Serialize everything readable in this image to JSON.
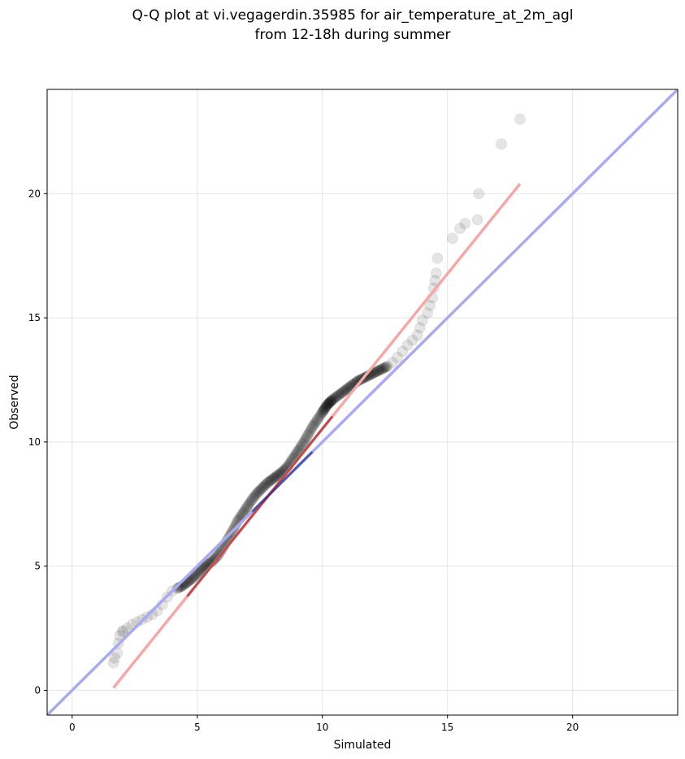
{
  "chart_data": {
    "type": "scatter",
    "title_line1": "Q-Q plot at vi.vegagerdin.35985 for air_temperature_at_2m_agl",
    "title_line2": "from 12-18h during summer",
    "xlabel": "Simulated",
    "ylabel": "Observed",
    "xlim": [
      -1,
      24.2
    ],
    "ylim": [
      -1,
      24.2
    ],
    "xticks": [
      0,
      5,
      10,
      15,
      20
    ],
    "yticks": [
      0,
      5,
      10,
      15,
      20
    ],
    "grid": true,
    "colors": {
      "points": "#000000",
      "identity_line": "#aaaaee",
      "fit_line": "#f5a8a8",
      "inner_fit": "#8b0000",
      "inner_identity": "#1a1a8c"
    },
    "identity_line": {
      "x": [
        -1,
        24.2
      ],
      "y": [
        -1,
        24.2
      ]
    },
    "fit_line": {
      "x": [
        1.65,
        17.9
      ],
      "y": [
        0.1,
        20.4
      ]
    },
    "points": {
      "x": [
        1.65,
        1.7,
        1.8,
        1.85,
        1.9,
        2.0,
        2.05,
        2.2,
        2.4,
        2.6,
        2.8,
        3.0,
        3.2,
        3.4,
        3.6,
        3.8,
        4.0,
        4.2,
        4.4,
        4.6,
        4.8,
        5.0,
        5.2,
        5.4,
        5.6,
        5.8,
        6.0,
        6.2,
        6.4,
        6.6,
        6.8,
        7.0,
        7.2,
        7.4,
        7.6,
        7.8,
        8.0,
        8.2,
        8.4,
        8.6,
        8.8,
        9.0,
        9.2,
        9.4,
        9.6,
        9.8,
        10.0,
        10.1,
        10.2,
        10.3,
        10.4,
        10.6,
        10.8,
        11.0,
        11.2,
        11.4,
        11.6,
        11.8,
        12.0,
        12.2,
        12.4,
        12.6,
        12.8,
        13.0,
        13.2,
        13.4,
        13.6,
        13.8,
        13.9,
        14.0,
        14.2,
        14.3,
        14.4,
        14.45,
        14.5,
        14.55,
        14.6,
        15.2,
        15.5,
        15.7,
        16.2,
        16.25,
        17.15,
        17.9
      ],
      "y": [
        1.1,
        1.3,
        1.5,
        1.9,
        2.2,
        2.35,
        2.4,
        2.5,
        2.65,
        2.75,
        2.85,
        2.95,
        3.05,
        3.2,
        3.45,
        3.75,
        4.0,
        4.1,
        4.2,
        4.35,
        4.5,
        4.7,
        4.9,
        5.05,
        5.2,
        5.4,
        5.7,
        6.05,
        6.4,
        6.8,
        7.1,
        7.4,
        7.7,
        7.95,
        8.15,
        8.35,
        8.5,
        8.65,
        8.8,
        9.0,
        9.3,
        9.6,
        9.9,
        10.25,
        10.6,
        10.9,
        11.2,
        11.35,
        11.5,
        11.6,
        11.7,
        11.85,
        12.0,
        12.15,
        12.3,
        12.45,
        12.55,
        12.65,
        12.75,
        12.85,
        12.95,
        13.05,
        13.2,
        13.4,
        13.65,
        13.9,
        14.1,
        14.3,
        14.6,
        14.9,
        15.2,
        15.5,
        15.8,
        16.2,
        16.5,
        16.8,
        17.4,
        18.2,
        18.6,
        18.8,
        18.95,
        20.0,
        22.0,
        23.0
      ]
    }
  }
}
